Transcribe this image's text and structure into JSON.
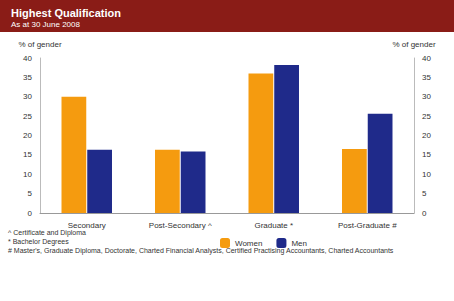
{
  "chart_data": {
    "type": "bar",
    "title": "Highest Qualification",
    "subtitle": "As at 30 June 2008",
    "y_label": "% of gender",
    "y2_label": "% of gender",
    "categories": [
      "Secondary",
      "Post-Secondary ^",
      "Graduate *",
      "Post-Graduate #"
    ],
    "series": [
      {
        "name": "Women",
        "color": "#f59b0f",
        "values": [
          30,
          16.3,
          36,
          16.5
        ]
      },
      {
        "name": "Men",
        "color": "#1f2a8a",
        "values": [
          16.3,
          15.9,
          38.2,
          25.6
        ]
      }
    ],
    "ylim": [
      0,
      40
    ],
    "yticks": [
      0,
      5,
      10,
      15,
      20,
      25,
      30,
      35,
      40
    ],
    "y2lim": [
      0,
      40
    ],
    "y2ticks": [
      0,
      5,
      10,
      15,
      20,
      25,
      30,
      35,
      40
    ],
    "notes": [
      "^ Certificate and Diploma",
      "* Bachelor Degrees",
      "# Master's, Graduate Diploma, Doctorate, Charted Financial Analysts, Certified Practising Accountants, Charted Accountants"
    ],
    "grid": false,
    "legend": "bottom",
    "data_labels": false
  }
}
